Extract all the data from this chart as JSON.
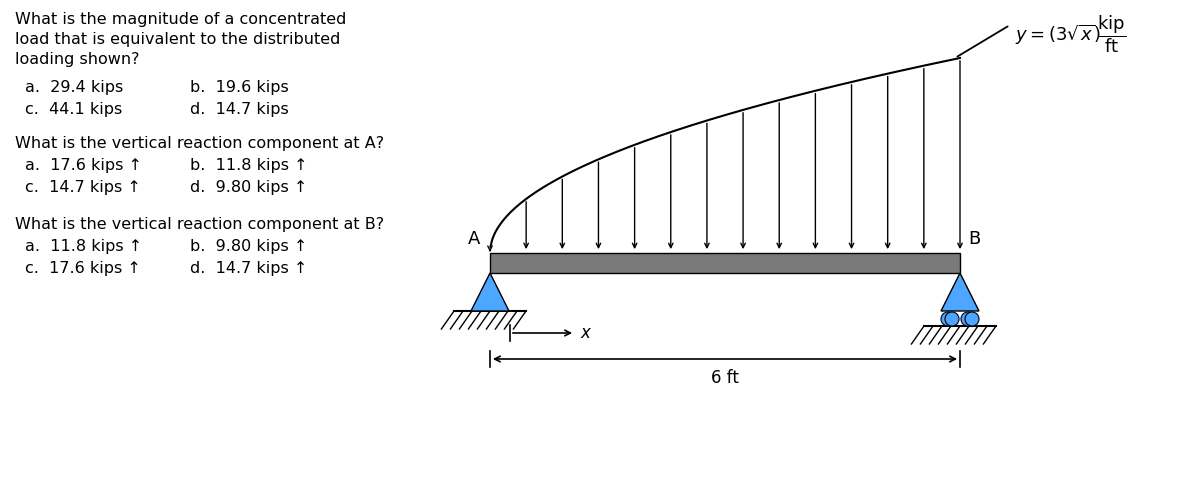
{
  "fig_width": 12.0,
  "fig_height": 5.0,
  "dpi": 100,
  "bg_color": "#ffffff",
  "q1_text_line1": "What is the magnitude of a concentrated",
  "q1_text_line2": "load that is equivalent to the distributed",
  "q1_text_line3": "loading shown?",
  "q1_a": "a.  29.4 kips",
  "q1_b": "b.  19.6 kips",
  "q1_c": "c.  44.1 kips",
  "q1_d": "d.  14.7 kips",
  "q2_text": "What is the vertical reaction component at A?",
  "q2_a": "a.  17.6 kips ↑",
  "q2_b": "b.  11.8 kips ↑",
  "q2_c": "c.  14.7 kips ↑",
  "q2_d": "d.  9.80 kips ↑",
  "q3_text": "What is the vertical reaction component at B?",
  "q3_a": "a.  11.8 kips ↑",
  "q3_b": "b.  9.80 kips ↑",
  "q3_c": "c.  17.6 kips ↑",
  "q3_d": "d.  14.7 kips ↑",
  "beam_color": "#7a7a7a",
  "cyan_color": "#4da6ff",
  "n_load_arrows": 14,
  "text_fontsize": 11.5
}
